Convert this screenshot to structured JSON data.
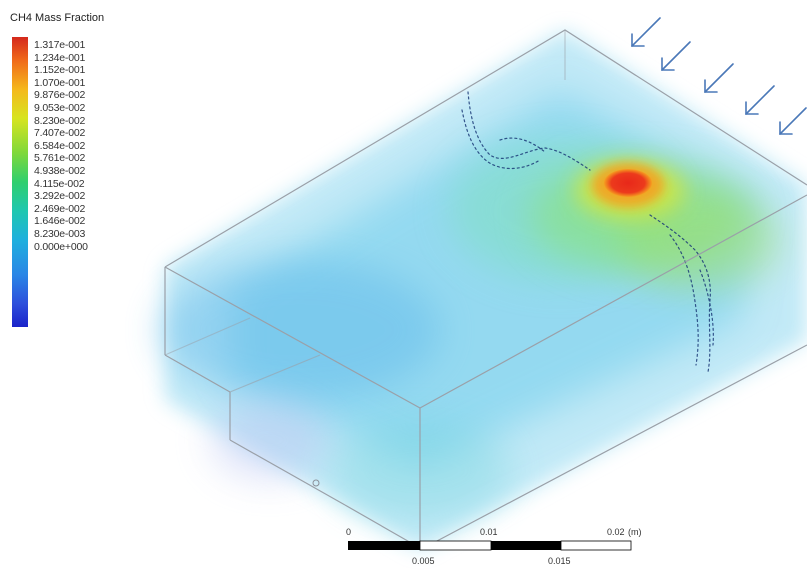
{
  "legend": {
    "title": "CH4 Mass Fraction",
    "labels": [
      "1.317e-001",
      "1.234e-001",
      "1.152e-001",
      "1.070e-001",
      "9.876e-002",
      "9.053e-002",
      "8.230e-002",
      "7.407e-002",
      "6.584e-002",
      "5.761e-002",
      "4.938e-002",
      "4.115e-002",
      "3.292e-002",
      "2.469e-002",
      "1.646e-002",
      "8.230e-003",
      "0.000e+000"
    ]
  },
  "scale": {
    "top_labels": [
      "0",
      "0.01",
      "0.02"
    ],
    "bottom_labels": [
      "0.005",
      "0.015"
    ],
    "unit": "(m)"
  },
  "colors": {
    "arrow": "#4a78b8",
    "box_edge": "#9aa0a8",
    "hotspot": "#e8281a"
  }
}
